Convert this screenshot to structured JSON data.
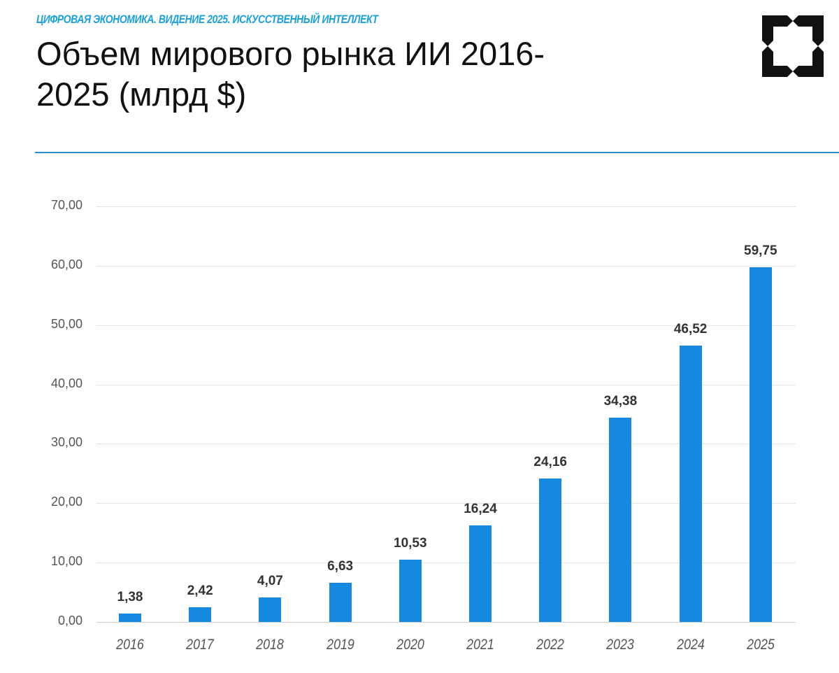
{
  "header": {
    "kicker": "ЦИФРОВАЯ ЭКОНОМИКА. ВИДЕНИЕ 2025. ИСКУССТВЕННЫЙ ИНТЕЛЛЕКТ",
    "title_line1": "Объем мирового рынка ИИ 2016-",
    "title_line2": "2025 (млрд $)",
    "logo_icon": "bracket-square-logo-icon",
    "accent_color": "#1aa0dc",
    "rule_color": "#2a8fd0"
  },
  "chart_data": {
    "type": "bar",
    "title": "Объем мирового рынка ИИ 2016-2025 (млрд $)",
    "xlabel": "",
    "ylabel": "",
    "categories": [
      "2016",
      "2017",
      "2018",
      "2019",
      "2020",
      "2021",
      "2022",
      "2023",
      "2024",
      "2025"
    ],
    "values": [
      1.38,
      2.42,
      4.07,
      6.63,
      10.53,
      16.24,
      24.16,
      34.38,
      46.52,
      59.75
    ],
    "value_labels": [
      "1,38",
      "2,42",
      "4,07",
      "6,63",
      "10,53",
      "16,24",
      "24,16",
      "34,38",
      "46,52",
      "59,75"
    ],
    "yticks": [
      "0,00",
      "10,00",
      "20,00",
      "30,00",
      "40,00",
      "50,00",
      "60,00",
      "70,00"
    ],
    "ylim": [
      0,
      70
    ],
    "grid": true,
    "legend": null,
    "bar_color": "#1589df"
  }
}
